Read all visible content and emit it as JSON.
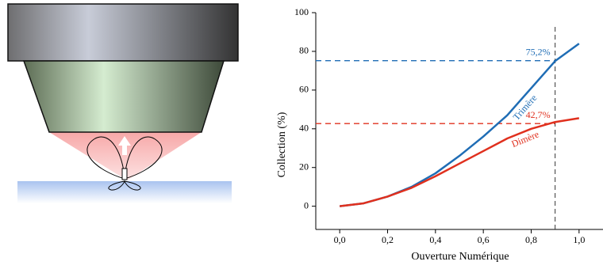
{
  "chart_data": {
    "type": "line",
    "x_label": "Ouverture Numérique",
    "y_label": "Collection (%)",
    "x": [
      0,
      0.1,
      0.2,
      0.3,
      0.4,
      0.5,
      0.6,
      0.7,
      0.8,
      0.9,
      1.0
    ],
    "series": [
      {
        "name": "Trimère",
        "color": "#1f6db5",
        "values": [
          0,
          1.5,
          5,
          10,
          17,
          26,
          36,
          47,
          61,
          75,
          84
        ]
      },
      {
        "name": "Dimère",
        "color": "#e0301e",
        "values": [
          0,
          1.5,
          5,
          9.5,
          15.5,
          22,
          28.5,
          35,
          40,
          43.5,
          45.5
        ]
      }
    ],
    "xlim": [
      -0.1,
      1.1
    ],
    "ylim": [
      -12,
      100
    ],
    "xticks": [
      {
        "value": 0,
        "label": "0,0"
      },
      {
        "value": 0.2,
        "label": "0,2"
      },
      {
        "value": 0.4,
        "label": "0,4"
      },
      {
        "value": 0.6,
        "label": "0,6"
      },
      {
        "value": 0.8,
        "label": "0,8"
      },
      {
        "value": 1.0,
        "label": "1,0"
      }
    ],
    "yticks": [
      0,
      20,
      40,
      60,
      80,
      100
    ],
    "reference_lines": [
      {
        "value": 75.2,
        "label": "75,2%",
        "color": "#1f6db5"
      },
      {
        "value": 42.7,
        "label": "42,7%",
        "color": "#e0301e"
      }
    ],
    "vline": 0.9
  }
}
